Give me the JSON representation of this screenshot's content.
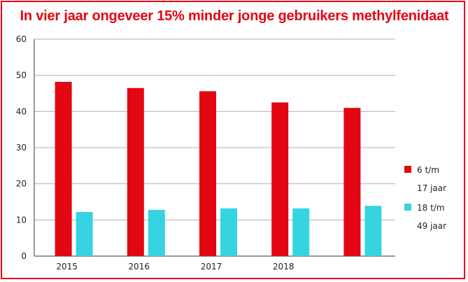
{
  "chart_data": {
    "type": "bar",
    "title": "In vier jaar ongeveer 15% minder jonge gebruikers methylfenidaat",
    "categories": [
      "2015",
      "2016",
      "2017",
      "2018",
      ""
    ],
    "series": [
      {
        "name": "6 t/m 17 jaar",
        "name_lines": [
          "6 t/m",
          "17 jaar"
        ],
        "color": "#e30613",
        "values": [
          48.2,
          46.5,
          45.6,
          42.5,
          41.0
        ]
      },
      {
        "name": "18 t/m 49 jaar",
        "name_lines": [
          "18 t/m",
          "49 jaar"
        ],
        "color": "#35d4e0",
        "values": [
          12.2,
          12.8,
          13.2,
          13.2,
          13.9
        ]
      }
    ],
    "ylim": [
      0,
      60
    ],
    "yticks": [
      0,
      10,
      20,
      30,
      40,
      50,
      60
    ],
    "grid": true,
    "legend": "right",
    "xlabel": "",
    "ylabel": ""
  }
}
